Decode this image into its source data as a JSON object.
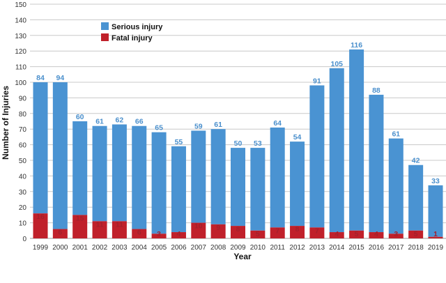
{
  "chart_data": {
    "type": "bar",
    "stacked": true,
    "title": "",
    "xlabel": "Year",
    "ylabel": "Number of Injuries",
    "ylim": [
      0,
      150
    ],
    "yticks": [
      0,
      10,
      20,
      30,
      40,
      50,
      60,
      70,
      80,
      90,
      100,
      110,
      120,
      130,
      140,
      150
    ],
    "grid": true,
    "legend_position": "top-left",
    "categories": [
      "1999",
      "2000",
      "2001",
      "2002",
      "2003",
      "2004",
      "2005",
      "2006",
      "2007",
      "2008",
      "2009",
      "2010",
      "2011",
      "2012",
      "2013",
      "2014",
      "2015",
      "2016",
      "2017",
      "2018",
      "2019"
    ],
    "series": [
      {
        "name": "Fatal injury",
        "color": "#c0202a",
        "values": [
          16,
          6,
          15,
          11,
          11,
          6,
          3,
          4,
          10,
          9,
          8,
          5,
          7,
          8,
          7,
          4,
          5,
          4,
          3,
          5,
          1
        ]
      },
      {
        "name": "Serious injury",
        "color": "#4a93d2",
        "values": [
          84,
          94,
          60,
          61,
          62,
          66,
          65,
          55,
          59,
          61,
          50,
          53,
          64,
          54,
          91,
          105,
          116,
          88,
          61,
          42,
          33
        ]
      }
    ]
  }
}
